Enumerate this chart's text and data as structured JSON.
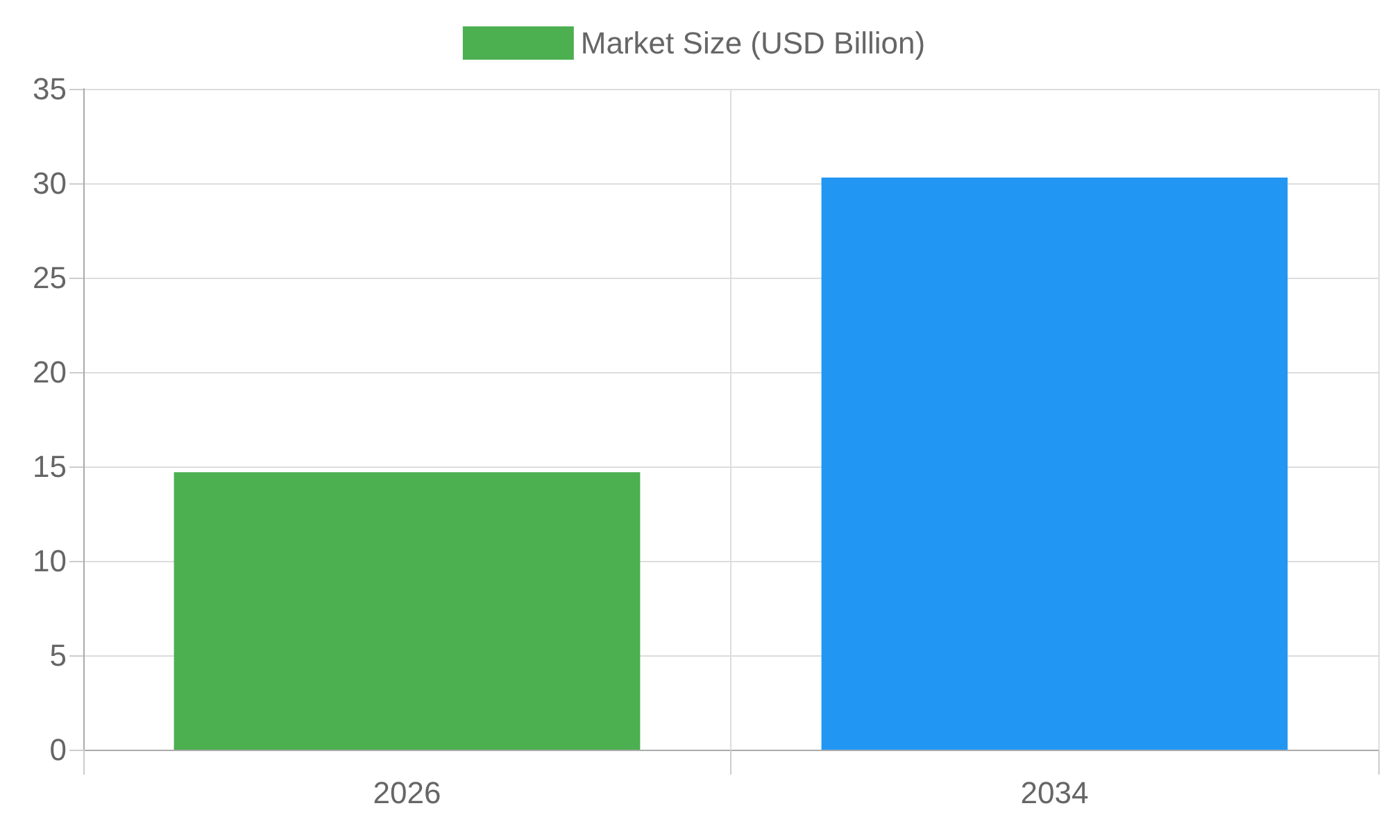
{
  "chart_data": {
    "type": "bar",
    "categories": [
      "2026",
      "2034"
    ],
    "series": [
      {
        "name": "Market Size (USD Billion)",
        "values": [
          14.7,
          30.3
        ],
        "colors": [
          "#4caf50",
          "#2196f3"
        ]
      }
    ],
    "ylim": [
      0,
      35
    ],
    "yticks": [
      0,
      5,
      10,
      15,
      20,
      25,
      30,
      35
    ],
    "grid": true,
    "legend": "top"
  }
}
